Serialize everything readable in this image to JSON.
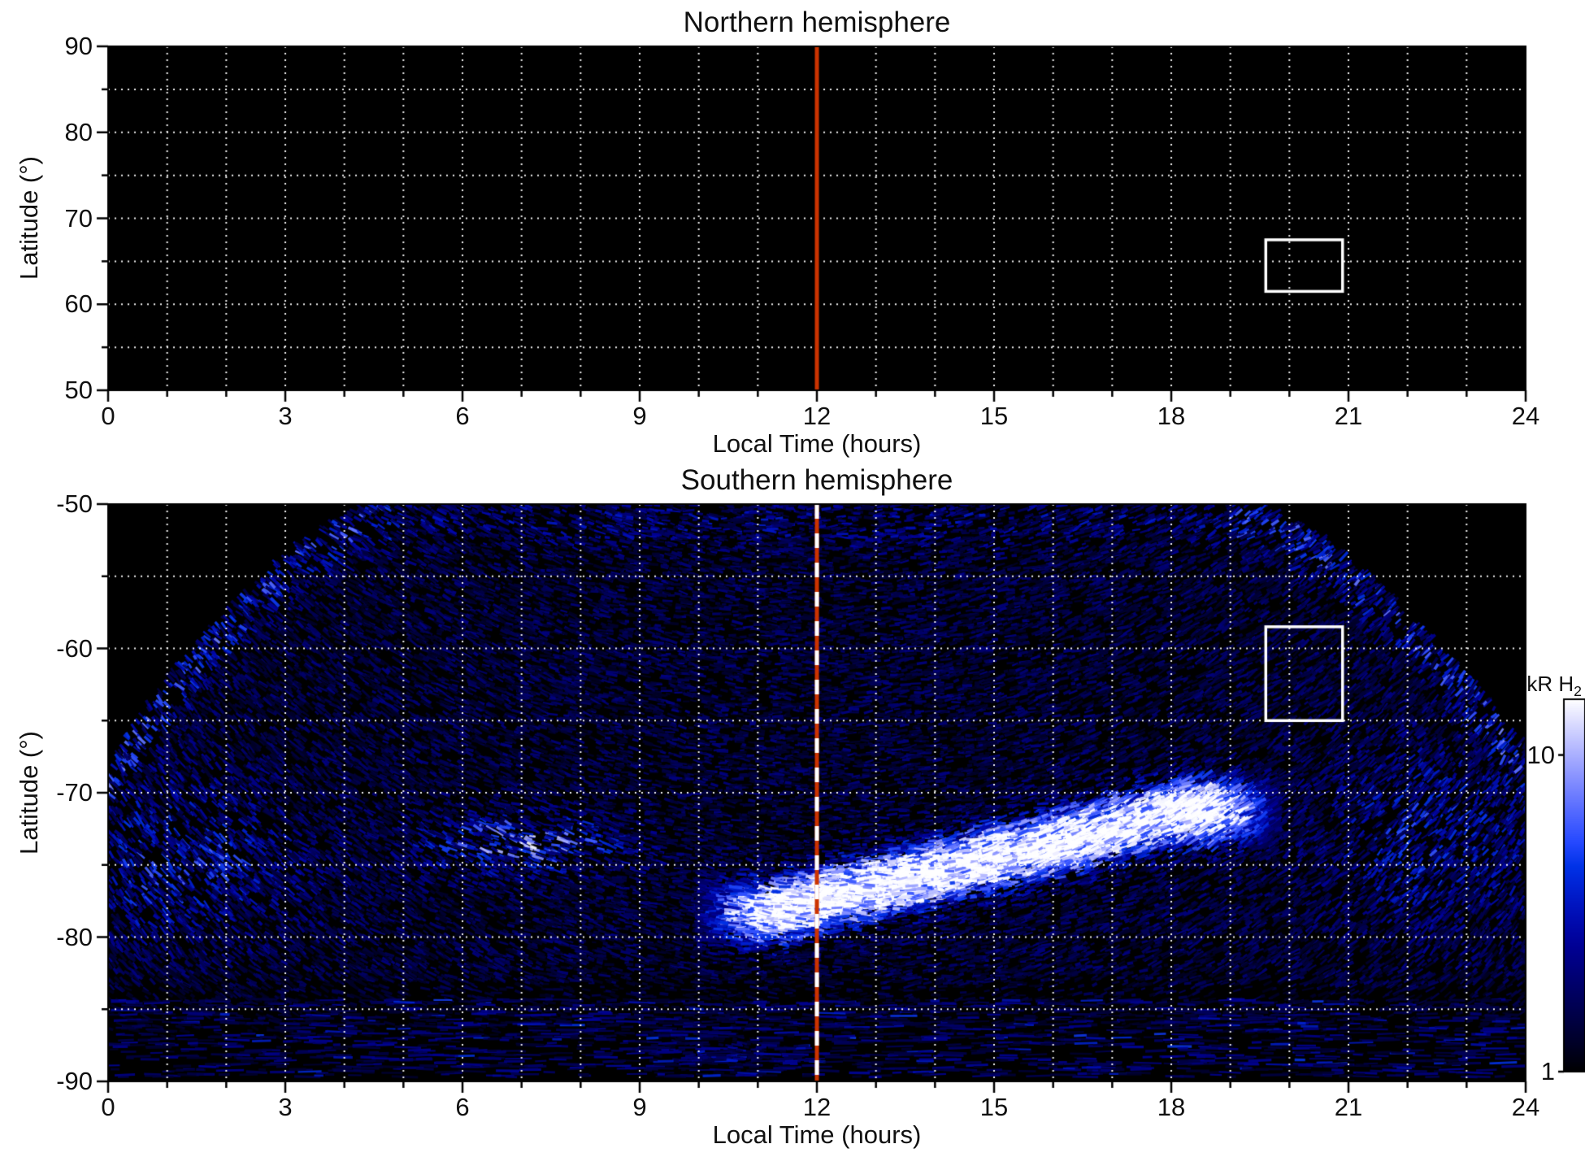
{
  "chart_data": [
    {
      "type": "heatmap",
      "id": "north",
      "title": "Northern hemisphere",
      "xlabel": "Local Time (hours)",
      "ylabel": "Latitude (°)",
      "xlim": [
        0,
        24
      ],
      "ylim": [
        50,
        90
      ],
      "xticks": [
        0,
        3,
        6,
        9,
        12,
        15,
        18,
        21,
        24
      ],
      "yticks": [
        90,
        80,
        70,
        60,
        50
      ],
      "x_minor_step": 1,
      "y_minor_step": 5,
      "grid": "white dotted",
      "plot_background": "#000000",
      "noon_line": {
        "x": 12,
        "color": "#cc3300",
        "style": "solid"
      },
      "roi_box": {
        "lt_min": 19.6,
        "lt_max": 20.9,
        "lat_min": 61.5,
        "lat_max": 67.5,
        "color": "#ffffff"
      },
      "emission": "none"
    },
    {
      "type": "heatmap",
      "id": "south",
      "title": "Southern hemisphere",
      "xlabel": "Local Time (hours)",
      "ylabel": "Latitude (°)",
      "xlim": [
        0,
        24
      ],
      "ylim": [
        -90,
        -50
      ],
      "xticks": [
        0,
        3,
        6,
        9,
        12,
        15,
        18,
        21,
        24
      ],
      "yticks": [
        -50,
        -60,
        -70,
        -80,
        -90
      ],
      "x_minor_step": 1,
      "y_minor_step": 5,
      "grid": "white dotted",
      "plot_background": "#000000",
      "noon_line": {
        "x": 12,
        "color": "#cc3300",
        "style": "dashed-white"
      },
      "roi_box": {
        "lt_min": 19.6,
        "lt_max": 20.9,
        "lat_min": -65.0,
        "lat_max": -58.5,
        "color": "#ffffff"
      },
      "colorbar": {
        "label_main": "kR H",
        "label_sub": "2",
        "scale": "log",
        "min": 1,
        "max": 15,
        "tick_values": [
          10,
          1
        ]
      },
      "features": [
        {
          "name": "main-auroral-arc",
          "lt_range": [
            10.0,
            19.8
          ],
          "lat_center_at_lt12": -77.5,
          "center_slope_deg_per_hour": 1.0,
          "width_deg": 2.0,
          "peak_kR": 15
        },
        {
          "name": "morning-patch",
          "lt": 7.0,
          "lat": -73.5,
          "sigma_lt": 1.5,
          "sigma_lat": 1.8,
          "amp": 0.5,
          "peak_kR": 6
        },
        {
          "name": "polar-arc",
          "lt": 10.3,
          "lat": -88.0,
          "sigma_lt": 0.9,
          "sigma_lat": 0.8,
          "amp": 0.4
        },
        {
          "name": "dawn-fan",
          "lt": 1.2,
          "lat": -75.0,
          "sigma_lt": 1.8,
          "sigma_lat": 5.0,
          "amp": 0.3
        },
        {
          "name": "dusk-fan",
          "lt": 22.5,
          "lat": -73.0,
          "sigma_lt": 1.8,
          "sigma_lat": 6.0,
          "amp": 0.25
        },
        {
          "name": "background-speckle",
          "base": 0.2,
          "kR_range": [
            1,
            4
          ]
        },
        {
          "name": "polar-cap-streaks",
          "lat_range": [
            -90,
            -84
          ],
          "kR": 1.5
        },
        {
          "name": "coverage-envelope",
          "dawn_full_lt": 4.6,
          "dusk_full_lt": 19.4,
          "lat_at_lt0": -68,
          "lat_at_lt24": -67
        }
      ]
    }
  ]
}
